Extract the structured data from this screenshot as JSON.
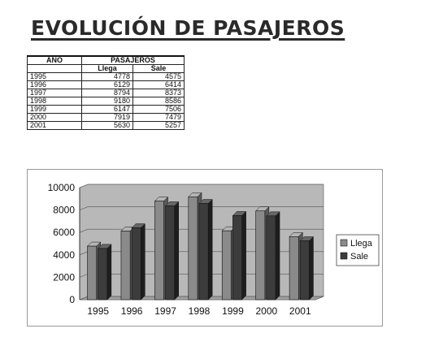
{
  "title": "EVOLUCIÓN DE PASAJEROS",
  "table": {
    "headers": {
      "year": "AÑO",
      "group": "PASAJEROS",
      "sub": [
        "Llega",
        "Sale"
      ]
    },
    "rows": [
      [
        "1995",
        "4778",
        "4575"
      ],
      [
        "1996",
        "6129",
        "6414"
      ],
      [
        "1997",
        "8794",
        "8373"
      ],
      [
        "1998",
        "9180",
        "8586"
      ],
      [
        "1999",
        "6147",
        "7506"
      ],
      [
        "2000",
        "7919",
        "7479"
      ],
      [
        "2001",
        "5630",
        "5257"
      ]
    ]
  },
  "chart_data": {
    "type": "bar",
    "categories": [
      "1995",
      "1996",
      "1997",
      "1998",
      "1999",
      "2000",
      "2001"
    ],
    "series": [
      {
        "name": "Llega",
        "values": [
          4778,
          6129,
          8794,
          9180,
          6147,
          7919,
          5630
        ],
        "color": "#8a8a8a"
      },
      {
        "name": "Sale",
        "values": [
          4575,
          6414,
          8373,
          8586,
          7506,
          7479,
          5257
        ],
        "color": "#3c3c3c"
      }
    ],
    "ylim": [
      0,
      10000
    ],
    "yticks": [
      "0",
      "2000",
      "4000",
      "6000",
      "8000",
      "10000"
    ],
    "grid": true,
    "legend": "right",
    "plot_background": "#b8b8b8"
  }
}
